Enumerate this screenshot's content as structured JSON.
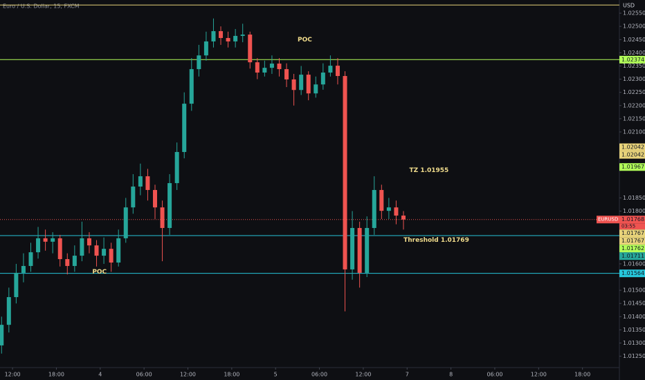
{
  "chart_data": {
    "type": "candlestick",
    "title": "Euro / U.S. Dollar, 15, FXCM",
    "currency": "USD",
    "up_color": "#26a69a",
    "down_color": "#ef5350",
    "x": [
      -1.5,
      -0.5,
      0.5,
      1.5,
      2.5,
      3.5,
      4.5,
      5.5,
      6.5,
      7.5,
      8.5,
      9.5,
      10.5,
      11.5,
      12.5,
      13.5,
      14.5,
      15.5,
      16.5,
      17.5,
      18.5,
      19.5,
      20.5,
      21.5,
      22.5,
      23.5,
      24.5,
      25.5,
      26.5,
      27.5,
      28.5,
      29.5,
      30.5,
      31.5,
      32.5,
      33.5,
      34.5,
      35.5,
      36.5,
      37.5,
      38.5,
      39.5,
      40.5,
      41.5,
      42.5,
      43.5,
      44.5,
      45.5,
      46.5,
      47.5,
      48.5,
      49.5,
      50.5,
      51.5,
      52.5,
      53.5
    ],
    "open": [
      1.01291,
      1.01369,
      1.01474,
      1.01566,
      1.01592,
      1.01644,
      1.01697,
      1.01684,
      1.01697,
      1.01618,
      1.01592,
      1.01631,
      1.01697,
      1.0167,
      1.01631,
      1.01657,
      1.01605,
      1.01697,
      1.01814,
      1.01893,
      1.01932,
      1.0188,
      1.01814,
      1.01736,
      1.01906,
      1.02024,
      1.02207,
      1.02338,
      1.0239,
      1.02443,
      1.02482,
      1.02456,
      1.02443,
      1.02464,
      1.02469,
      1.02364,
      1.02325,
      1.02343,
      1.02359,
      1.02338,
      1.02299,
      1.02259,
      1.02317,
      1.02246,
      1.0228,
      1.02325,
      1.02351,
      1.02312,
      1.01579,
      1.01736,
      1.01566,
      1.01736,
      1.0188,
      1.01801,
      1.01814,
      1.01783
    ],
    "high": [
      1.014,
      1.0151,
      1.016,
      1.0164,
      1.0168,
      1.0174,
      1.0173,
      1.0172,
      1.0171,
      1.0164,
      1.0167,
      1.0176,
      1.0172,
      1.0169,
      1.017,
      1.0168,
      1.0173,
      1.0185,
      1.0194,
      1.0198,
      1.0196,
      1.019,
      1.0184,
      1.0194,
      1.0206,
      1.0225,
      1.0238,
      1.0243,
      1.0248,
      1.0253,
      1.025,
      1.0248,
      1.0249,
      1.0251,
      1.0248,
      1.0238,
      1.0237,
      1.0239,
      1.0238,
      1.0236,
      1.0232,
      1.0235,
      1.0233,
      1.0231,
      1.0236,
      1.0239,
      1.0238,
      1.0233,
      1.018,
      1.0176,
      1.0178,
      1.01932,
      1.019,
      1.0185,
      1.0184,
      1.018
    ],
    "low": [
      1.0126,
      1.0134,
      1.0145,
      1.0153,
      1.0157,
      1.0162,
      1.0165,
      1.0164,
      1.0159,
      1.0156,
      1.0157,
      1.0161,
      1.0164,
      1.0159,
      1.016,
      1.0157,
      1.0159,
      1.0168,
      1.0179,
      1.0186,
      1.0184,
      1.0177,
      1.0161,
      1.0171,
      1.0188,
      1.02,
      1.0218,
      1.0231,
      1.0237,
      1.0242,
      1.0243,
      1.0242,
      1.0242,
      1.0244,
      1.0234,
      1.023,
      1.0231,
      1.0232,
      1.0231,
      1.0227,
      1.022,
      1.0224,
      1.0222,
      1.0223,
      1.0226,
      1.0231,
      1.0228,
      1.0142,
      1.0154,
      1.0151,
      1.0155,
      1.0171,
      1.0177,
      1.0177,
      1.0175,
      1.0173
    ],
    "close": [
      1.01369,
      1.01474,
      1.01566,
      1.01592,
      1.01644,
      1.01697,
      1.01684,
      1.01697,
      1.01618,
      1.01592,
      1.01631,
      1.01697,
      1.0167,
      1.01631,
      1.01657,
      1.01605,
      1.01697,
      1.01814,
      1.01893,
      1.01932,
      1.0188,
      1.01814,
      1.01736,
      1.01906,
      1.02024,
      1.02207,
      1.02338,
      1.0239,
      1.02443,
      1.02482,
      1.02456,
      1.02443,
      1.02464,
      1.02469,
      1.02364,
      1.02325,
      1.02343,
      1.02359,
      1.02338,
      1.02299,
      1.02259,
      1.02317,
      1.02246,
      1.0228,
      1.02325,
      1.02351,
      1.02312,
      1.01579,
      1.01736,
      1.01566,
      1.01736,
      1.0188,
      1.01801,
      1.01814,
      1.01783,
      1.01768
    ],
    "xlim": [
      -1.714,
      83.05
    ],
    "xticks": [
      {
        "value": 0,
        "label": "12:00"
      },
      {
        "value": 6,
        "label": "18:00"
      },
      {
        "value": 12,
        "label": "4"
      },
      {
        "value": 18,
        "label": "06:00"
      },
      {
        "value": 24,
        "label": "12:00"
      },
      {
        "value": 30,
        "label": "18:00"
      },
      {
        "value": 36,
        "label": "5"
      },
      {
        "value": 42,
        "label": "06:00"
      },
      {
        "value": 48,
        "label": "12:00"
      },
      {
        "value": 54,
        "label": "7"
      },
      {
        "value": 60,
        "label": "8"
      },
      {
        "value": 66,
        "label": "06:00"
      },
      {
        "value": 72,
        "label": "12:00"
      },
      {
        "value": 78,
        "label": "18:00"
      }
    ],
    "ylim": [
      1.01207,
      1.026
    ],
    "yticks": [
      {
        "value": 1.0255,
        "label": "1.02550"
      },
      {
        "value": 1.025,
        "label": "1.02500"
      },
      {
        "value": 1.0245,
        "label": "1.02450"
      },
      {
        "value": 1.024,
        "label": "1.02400"
      },
      {
        "value": 1.0235,
        "label": "1.02350"
      },
      {
        "value": 1.023,
        "label": "1.02300"
      },
      {
        "value": 1.0225,
        "label": "1.02250"
      },
      {
        "value": 1.022,
        "label": "1.02200"
      },
      {
        "value": 1.0215,
        "label": "1.02150"
      },
      {
        "value": 1.021,
        "label": "1.02100"
      },
      {
        "value": 1.0185,
        "label": "1.01850"
      },
      {
        "value": 1.018,
        "label": "1.01800"
      },
      {
        "value": 1.016,
        "label": "1.01600"
      },
      {
        "value": 1.015,
        "label": "1.01500"
      },
      {
        "value": 1.0145,
        "label": "1.01450"
      },
      {
        "value": 1.014,
        "label": "1.01400"
      },
      {
        "value": 1.0135,
        "label": "1.01350"
      },
      {
        "value": 1.013,
        "label": "1.01300"
      },
      {
        "value": 1.0125,
        "label": "1.01250"
      }
    ],
    "levels": [
      {
        "value": 1.02581,
        "color": "#e8d37a"
      },
      {
        "value": 1.02374,
        "color": "#b2ff59"
      },
      {
        "value": 1.01707,
        "color": "#26c6da"
      },
      {
        "value": 1.01564,
        "color": "#26c6da"
      }
    ],
    "current_price": 1.01768,
    "symbol_label": "EURUSD",
    "countdown": "03:55",
    "price_labels": [
      {
        "value": 1.02374,
        "color": "#b2ff59"
      },
      {
        "value": 1.02042,
        "color": "#e8d37a"
      },
      {
        "value": 1.02042,
        "color": "#e8d37a"
      },
      {
        "value": 1.01967,
        "color": "#b2ff59"
      },
      {
        "value": 1.01768,
        "color": "#ef5350"
      },
      {
        "value": 1.01767,
        "color": "#e8d37a"
      },
      {
        "value": 1.01767,
        "color": "#e8d37a"
      },
      {
        "value": 1.01762,
        "color": "#b2ff59"
      },
      {
        "value": 1.01711,
        "color": "#26a69a"
      },
      {
        "value": 1.01564,
        "color": "#26c6da"
      }
    ],
    "annotations": [
      {
        "text": "POC",
        "x": 40,
        "y": 1.0245
      },
      {
        "text": "POC",
        "x": 11.9,
        "y": 1.0157
      },
      {
        "text": "TZ 1.01955",
        "x": 57,
        "y": 1.01955
      },
      {
        "text": "Threshold 1.01769",
        "x": 58,
        "y": 1.0169
      }
    ]
  }
}
